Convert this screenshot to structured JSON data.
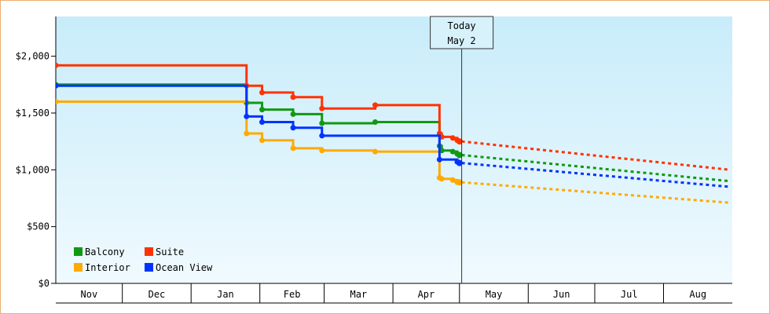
{
  "chart_data": {
    "type": "line",
    "y_ticks": [
      "$0",
      "$500",
      "$1,000",
      "$1,500",
      "$2,000"
    ],
    "ylim": [
      0,
      2350
    ],
    "months": [
      "Nov",
      "Dec",
      "Jan",
      "Feb",
      "Mar",
      "Apr",
      "May",
      "Jun",
      "Jul",
      "Aug"
    ],
    "xlim": [
      "2023-11-01",
      "2024-08-31"
    ],
    "today": {
      "line1": "Today",
      "line2": "May 2",
      "date": "2024-05-02"
    },
    "grid": false,
    "legend_position": "bottom-left",
    "colors": {
      "plot_bg_top": "#c8ecfa",
      "plot_bg_bottom": "#f0fafe",
      "frame": "#e8b070"
    },
    "series": [
      {
        "name": "Balcony",
        "color": "#119911",
        "history": [
          [
            "2023-11-01",
            1750
          ],
          [
            "2024-01-25",
            1750
          ],
          [
            "2024-01-26",
            1590
          ],
          [
            "2024-02-01",
            1590
          ],
          [
            "2024-02-02",
            1530
          ],
          [
            "2024-02-15",
            1530
          ],
          [
            "2024-02-16",
            1490
          ],
          [
            "2024-02-28",
            1490
          ],
          [
            "2024-02-29",
            1410
          ],
          [
            "2024-03-23",
            1410
          ],
          [
            "2024-03-24",
            1420
          ],
          [
            "2024-04-21",
            1420
          ],
          [
            "2024-04-22",
            1210
          ],
          [
            "2024-04-23",
            1170
          ],
          [
            "2024-04-28",
            1160
          ],
          [
            "2024-04-30",
            1140
          ],
          [
            "2024-05-01",
            1130
          ]
        ],
        "forecast": [
          [
            "2024-05-02",
            1130
          ],
          [
            "2024-08-31",
            900
          ]
        ]
      },
      {
        "name": "Suite",
        "color": "#ff3300",
        "history": [
          [
            "2023-11-01",
            1920
          ],
          [
            "2024-01-25",
            1920
          ],
          [
            "2024-01-26",
            1740
          ],
          [
            "2024-02-01",
            1740
          ],
          [
            "2024-02-02",
            1680
          ],
          [
            "2024-02-15",
            1680
          ],
          [
            "2024-02-16",
            1640
          ],
          [
            "2024-02-28",
            1640
          ],
          [
            "2024-02-29",
            1540
          ],
          [
            "2024-03-23",
            1540
          ],
          [
            "2024-03-24",
            1570
          ],
          [
            "2024-04-21",
            1570
          ],
          [
            "2024-04-22",
            1320
          ],
          [
            "2024-04-23",
            1290
          ],
          [
            "2024-04-28",
            1280
          ],
          [
            "2024-04-30",
            1260
          ],
          [
            "2024-05-01",
            1250
          ]
        ],
        "forecast": [
          [
            "2024-05-02",
            1250
          ],
          [
            "2024-08-31",
            1000
          ]
        ]
      },
      {
        "name": "Interior",
        "color": "#ffaa00",
        "history": [
          [
            "2023-11-01",
            1600
          ],
          [
            "2024-01-25",
            1600
          ],
          [
            "2024-01-26",
            1320
          ],
          [
            "2024-02-01",
            1320
          ],
          [
            "2024-02-02",
            1260
          ],
          [
            "2024-02-15",
            1260
          ],
          [
            "2024-02-16",
            1190
          ],
          [
            "2024-02-28",
            1190
          ],
          [
            "2024-02-29",
            1170
          ],
          [
            "2024-03-23",
            1170
          ],
          [
            "2024-03-24",
            1160
          ],
          [
            "2024-04-21",
            1160
          ],
          [
            "2024-04-22",
            930
          ],
          [
            "2024-04-23",
            920
          ],
          [
            "2024-04-28",
            910
          ],
          [
            "2024-04-30",
            890
          ],
          [
            "2024-05-01",
            890
          ]
        ],
        "forecast": [
          [
            "2024-05-02",
            890
          ],
          [
            "2024-08-31",
            710
          ]
        ]
      },
      {
        "name": "Ocean View",
        "color": "#0033ff",
        "history": [
          [
            "2023-11-01",
            1740
          ],
          [
            "2024-01-25",
            1740
          ],
          [
            "2024-01-26",
            1470
          ],
          [
            "2024-02-01",
            1470
          ],
          [
            "2024-02-02",
            1420
          ],
          [
            "2024-02-15",
            1420
          ],
          [
            "2024-02-16",
            1370
          ],
          [
            "2024-02-28",
            1370
          ],
          [
            "2024-02-29",
            1300
          ],
          [
            "2024-03-23",
            1300
          ],
          [
            "2024-03-24",
            1300
          ],
          [
            "2024-04-21",
            1300
          ],
          [
            "2024-04-22",
            1090
          ],
          [
            "2024-04-28",
            1090
          ],
          [
            "2024-04-30",
            1070
          ],
          [
            "2024-05-01",
            1060
          ]
        ],
        "forecast": [
          [
            "2024-05-02",
            1060
          ],
          [
            "2024-08-31",
            850
          ]
        ]
      }
    ]
  }
}
